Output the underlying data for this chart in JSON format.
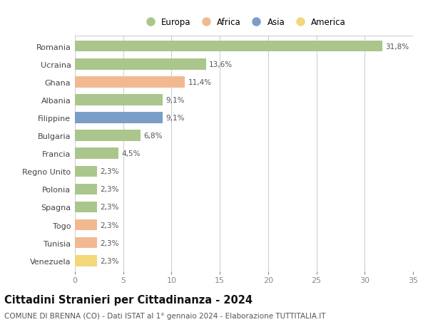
{
  "countries": [
    "Romania",
    "Ucraina",
    "Ghana",
    "Albania",
    "Filippine",
    "Bulgaria",
    "Francia",
    "Regno Unito",
    "Polonia",
    "Spagna",
    "Togo",
    "Tunisia",
    "Venezuela"
  ],
  "values": [
    31.8,
    13.6,
    11.4,
    9.1,
    9.1,
    6.8,
    4.5,
    2.3,
    2.3,
    2.3,
    2.3,
    2.3,
    2.3
  ],
  "labels": [
    "31,8%",
    "13,6%",
    "11,4%",
    "9,1%",
    "9,1%",
    "6,8%",
    "4,5%",
    "2,3%",
    "2,3%",
    "2,3%",
    "2,3%",
    "2,3%",
    "2,3%"
  ],
  "continents": [
    "Europa",
    "Europa",
    "Africa",
    "Europa",
    "Asia",
    "Europa",
    "Europa",
    "Europa",
    "Europa",
    "Europa",
    "Africa",
    "Africa",
    "America"
  ],
  "colors": {
    "Europa": "#aac68c",
    "Africa": "#f2b990",
    "Asia": "#7b9ec8",
    "America": "#f2d878"
  },
  "title": "Cittadini Stranieri per Cittadinanza - 2024",
  "subtitle": "COMUNE DI BRENNA (CO) - Dati ISTAT al 1° gennaio 2024 - Elaborazione TUTTITALIA.IT",
  "xlim": [
    0,
    35
  ],
  "xticks": [
    0,
    5,
    10,
    15,
    20,
    25,
    30,
    35
  ],
  "background_color": "#ffffff",
  "grid_color": "#cccccc",
  "bar_height": 0.62,
  "label_fontsize": 7.5,
  "title_fontsize": 10.5,
  "subtitle_fontsize": 7.5,
  "ytick_fontsize": 8,
  "xtick_fontsize": 8,
  "legend_fontsize": 8.5
}
